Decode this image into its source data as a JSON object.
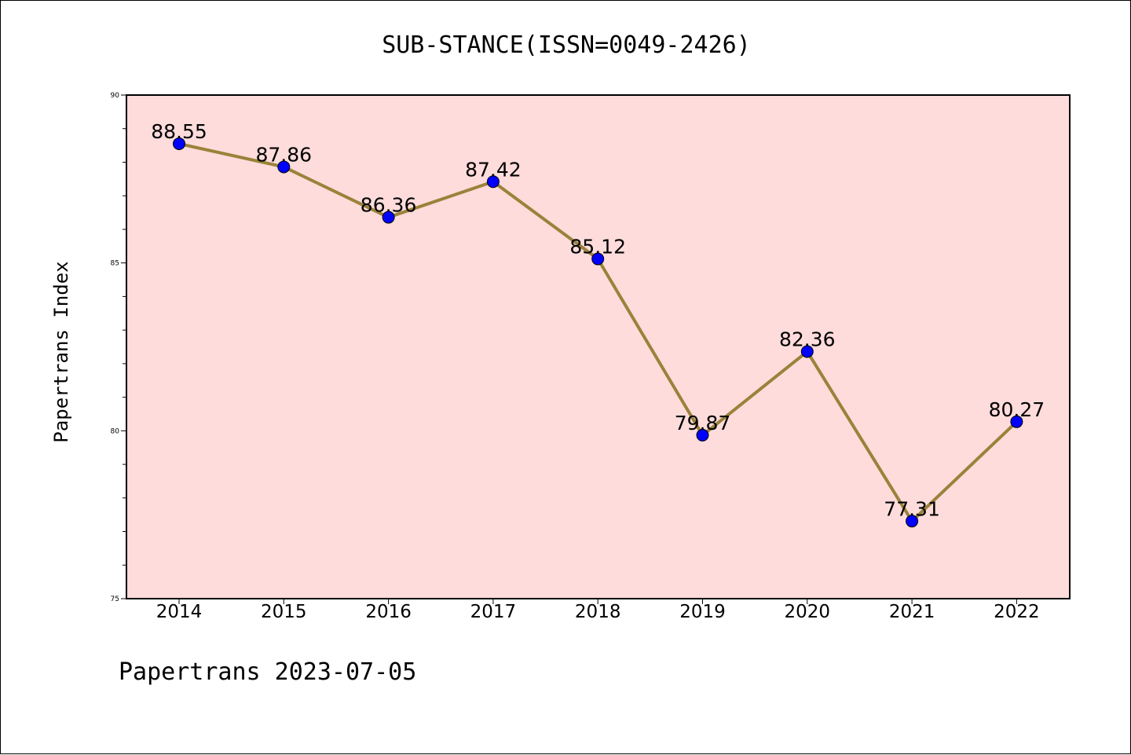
{
  "footer_text": "Papertrans 2023-07-05",
  "colors": {
    "plot_background": "#fddcdb",
    "line": "#9a823a",
    "marker": "#0000ff",
    "axes": "#000000"
  },
  "chart_data": {
    "type": "line",
    "title": "SUB-STANCE(ISSN=0049-2426)",
    "xlabel": "",
    "ylabel": "Papertrans Index",
    "categories": [
      "2014",
      "2015",
      "2016",
      "2017",
      "2018",
      "2019",
      "2020",
      "2021",
      "2022"
    ],
    "series": [
      {
        "values": [
          88.55,
          87.86,
          86.36,
          87.42,
          85.12,
          79.87,
          82.36,
          77.31,
          80.27
        ],
        "data_labels": [
          "88.55",
          "87.86",
          "86.36",
          "87.42",
          "85.12",
          "79.87",
          "82.36",
          "77.31",
          "80.27"
        ]
      }
    ],
    "ylim": [
      75,
      90
    ],
    "yticks": [
      "75",
      "80",
      "85",
      "90"
    ],
    "grid": false,
    "legend": "none"
  }
}
